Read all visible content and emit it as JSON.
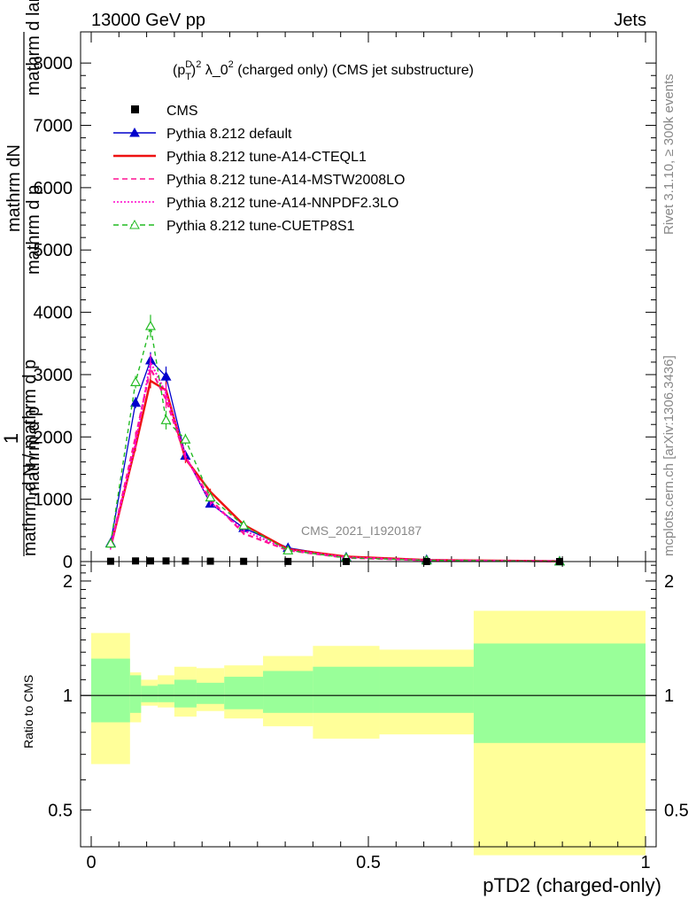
{
  "header": {
    "left": "13000 GeV pp",
    "right": "Jets"
  },
  "observable": {
    "title_main": "(p",
    "title_sup1": "D",
    "title_sub": "T",
    "title_mid": ")",
    "title_sup2": "2",
    "title_rest": " λ_0",
    "title_sup3": "2",
    "title_tail": " (charged only) (CMS jet substructure)"
  },
  "side_labels": {
    "rivet": "Rivet 3.1.10, ≥ 300k events",
    "mcplots": "mcplots.cern.ch [arXiv:1306.3436]"
  },
  "watermark": "CMS_2021_I1920187",
  "ylabel_top": {
    "numerator": "1",
    "denominator_line1": "mathrm d N",
    "fraction_line1": "mathrm dN",
    "fraction_line2": "mathrm d p",
    "sub": "T",
    "line3": "mathrm d lambda",
    "line4": "mathrm d p",
    "line5": "mathrm d N / mathrm d p",
    "line6": "mathrm d lambda"
  },
  "ylabel_bottom": "Ratio to CMS",
  "xlabel": "pTD2 (charged-only)",
  "legend": [
    {
      "label": "CMS",
      "color": "#000000",
      "style": "marker-square"
    },
    {
      "label": "Pythia 8.212 default",
      "color": "#0000cc",
      "style": "line-triangle"
    },
    {
      "label": "Pythia 8.212 tune-A14-CTEQL1",
      "color": "#ee1111",
      "style": "solid"
    },
    {
      "label": "Pythia 8.212 tune-A14-MSTW2008LO",
      "color": "#ff1493",
      "style": "dashed"
    },
    {
      "label": "Pythia 8.212 tune-A14-NNPDF2.3LO",
      "color": "#ff00cc",
      "style": "dotted"
    },
    {
      "label": "Pythia 8.212 tune-CUETP8S1",
      "color": "#22bb22",
      "style": "dashed-open-triangle"
    }
  ],
  "chart_data": {
    "type": "line",
    "x_range": [
      0,
      1
    ],
    "x_ticks": [
      "0",
      "0.5",
      "1"
    ],
    "main_ylim": [
      0,
      8500
    ],
    "main_yticks": [
      "0",
      "1000",
      "2000",
      "3000",
      "4000",
      "5000",
      "6000",
      "7000",
      "8000"
    ],
    "ratio_ylim": [
      0.4,
      2.25
    ],
    "ratio_yticks": [
      "0.5",
      "1",
      "2"
    ],
    "x": [
      0.035,
      0.08,
      0.107,
      0.135,
      0.17,
      0.215,
      0.275,
      0.355,
      0.46,
      0.605,
      0.845
    ],
    "bin_edges": [
      0.0,
      0.07,
      0.09,
      0.12,
      0.15,
      0.19,
      0.24,
      0.31,
      0.4,
      0.52,
      0.69,
      1.0
    ],
    "data_cms": [
      5,
      10,
      10,
      10,
      8,
      6,
      4,
      2,
      1,
      0.5,
      0.2
    ],
    "series": [
      {
        "name": "Pythia 8.212 default",
        "values": [
          300,
          2550,
          3230,
          2970,
          1700,
          930,
          540,
          220,
          70,
          30,
          5
        ],
        "errors": [
          40,
          90,
          130,
          160,
          80,
          50,
          30,
          20,
          10,
          5,
          2
        ]
      },
      {
        "name": "Pythia 8.212 tune-A14-CTEQL1",
        "values": [
          230,
          1850,
          2900,
          2750,
          1650,
          1120,
          590,
          200,
          80,
          25,
          5
        ],
        "errors": [
          30,
          80,
          120,
          140,
          70,
          50,
          30,
          15,
          8,
          4,
          2
        ]
      },
      {
        "name": "Pythia 8.212 tune-A14-MSTW2008LO",
        "values": [
          220,
          2000,
          3100,
          2600,
          1680,
          1000,
          450,
          180,
          60,
          20,
          4
        ],
        "errors": [
          30,
          80,
          130,
          140,
          70,
          50,
          25,
          15,
          8,
          4,
          2
        ]
      },
      {
        "name": "Pythia 8.212 tune-A14-NNPDF2.3LO",
        "values": [
          220,
          1900,
          3200,
          2700,
          1700,
          950,
          500,
          190,
          70,
          22,
          4
        ],
        "errors": [
          30,
          80,
          130,
          140,
          70,
          50,
          25,
          15,
          8,
          4,
          2
        ]
      },
      {
        "name": "Pythia 8.212 tune-CUETP8S1",
        "values": [
          290,
          2880,
          3780,
          2270,
          1960,
          1030,
          580,
          180,
          60,
          20,
          4
        ],
        "errors": [
          40,
          100,
          180,
          150,
          90,
          50,
          30,
          15,
          8,
          4,
          2
        ]
      }
    ],
    "ratio_bands": {
      "inner": [
        [
          0.85,
          1.25
        ],
        [
          0.9,
          1.13
        ],
        [
          0.96,
          1.06
        ],
        [
          0.96,
          1.07
        ],
        [
          0.93,
          1.1
        ],
        [
          0.95,
          1.08
        ],
        [
          0.92,
          1.12
        ],
        [
          0.9,
          1.16
        ],
        [
          0.9,
          1.19
        ],
        [
          0.9,
          1.19
        ],
        [
          0.75,
          1.37
        ]
      ],
      "outer": [
        [
          0.66,
          1.46
        ],
        [
          0.85,
          1.15
        ],
        [
          0.94,
          1.1
        ],
        [
          0.93,
          1.13
        ],
        [
          0.88,
          1.19
        ],
        [
          0.91,
          1.18
        ],
        [
          0.87,
          1.2
        ],
        [
          0.83,
          1.27
        ],
        [
          0.77,
          1.35
        ],
        [
          0.79,
          1.32
        ],
        [
          0.38,
          1.67
        ]
      ]
    },
    "colors": {
      "band_inner": "#99ff99",
      "band_outer": "#ffff99"
    }
  }
}
